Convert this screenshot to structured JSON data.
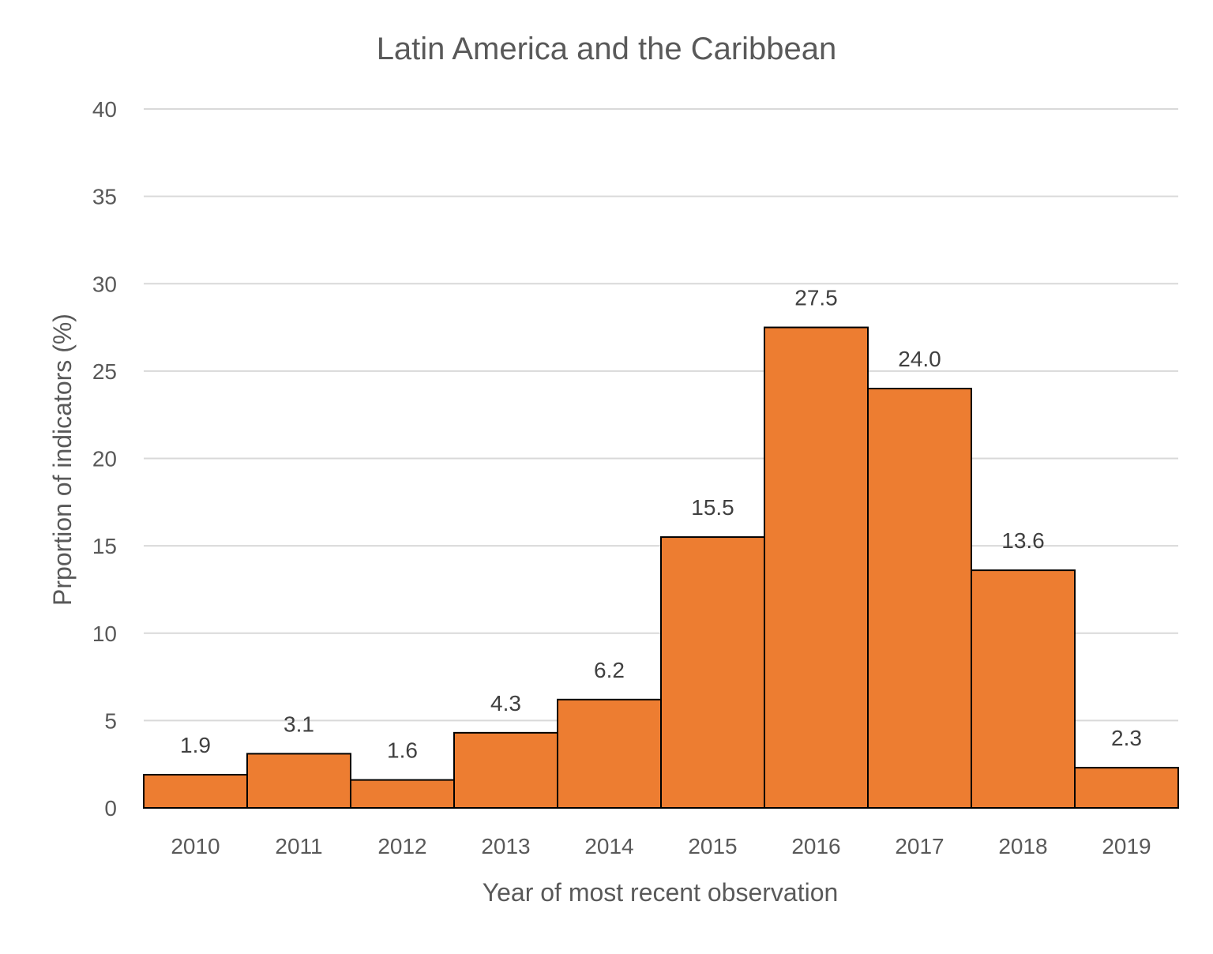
{
  "chart_data": {
    "type": "bar",
    "title": "Latin America and the Caribbean",
    "xlabel": "Year of most recent observation",
    "ylabel": "Prportion of indicators (%)",
    "categories": [
      "2010",
      "2011",
      "2012",
      "2013",
      "2014",
      "2015",
      "2016",
      "2017",
      "2018",
      "2019"
    ],
    "values": [
      1.9,
      3.1,
      1.6,
      4.3,
      6.2,
      15.5,
      27.5,
      24.0,
      13.6,
      2.3
    ],
    "data_labels": [
      "1.9",
      "3.1",
      "1.6",
      "4.3",
      "6.2",
      "15.5",
      "27.5",
      "24.0",
      "13.6",
      "2.3"
    ],
    "ylim": [
      0,
      40
    ],
    "yticks": [
      "0",
      "5",
      "10",
      "15",
      "20",
      "25",
      "30",
      "35",
      "40"
    ],
    "grid": true,
    "legend": "none",
    "bar_color": "#ED7D31",
    "bar_edge_color": "#000000"
  }
}
